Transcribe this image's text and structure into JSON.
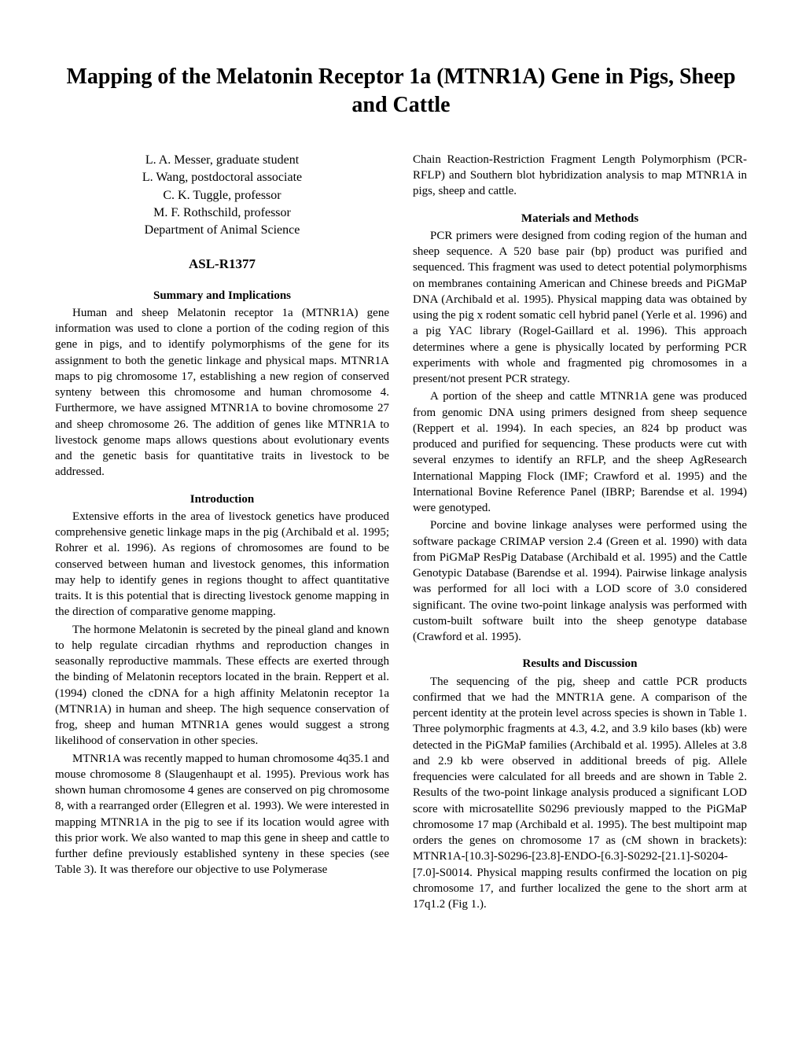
{
  "title": "Mapping of the Melatonin Receptor 1a (MTNR1A) Gene in Pigs, Sheep and Cattle",
  "authors": {
    "a1": "L. A. Messer, graduate student",
    "a2": "L. Wang, postdoctoral associate",
    "a3": "C. K. Tuggle, professor",
    "a4": "M. F. Rothschild, professor",
    "dept": "Department of Animal Science"
  },
  "asl": "ASL-R1377",
  "left": {
    "h1": "Summary and Implications",
    "p1": "Human and sheep Melatonin receptor 1a (MTNR1A) gene information was used to clone a portion of the coding region of this gene in pigs, and to identify polymorphisms of the gene for its assignment to both the genetic linkage and physical maps. MTNR1A maps to pig chromosome 17, establishing a new region of conserved synteny between this chromosome and human chromosome 4. Furthermore, we have assigned MTNR1A to bovine chromosome 27 and sheep chromosome 26. The addition of genes like MTNR1A to livestock genome maps allows questions about evolutionary events and the genetic basis for quantitative traits in livestock to be addressed.",
    "h2": "Introduction",
    "p2": "Extensive efforts in the area of livestock genetics have produced comprehensive genetic linkage maps in the pig (Archibald et al. 1995; Rohrer et al. 1996). As regions of chromosomes are found to be conserved between human and livestock genomes, this information may help to identify genes in regions thought to affect quantitative traits. It is this potential that is directing livestock genome mapping in the direction of comparative genome mapping.",
    "p3": "The hormone Melatonin is secreted by the pineal gland and known to help regulate circadian rhythms and reproduction changes in seasonally reproductive mammals. These effects are exerted through the binding of Melatonin receptors located in the brain. Reppert et al. (1994) cloned the cDNA for a high affinity Melatonin receptor 1a (MTNR1A) in human and sheep. The high sequence conservation of frog, sheep and human MTNR1A genes would suggest a strong likelihood of conservation in other species.",
    "p4": "MTNR1A was recently mapped to human chromosome 4q35.1 and mouse chromosome 8 (Slaugenhaupt et al. 1995). Previous work has shown human chromosome 4 genes are conserved on pig chromosome 8, with a rearranged order (Ellegren et al. 1993). We were interested in mapping MTNR1A in the pig to see if its location would agree with this prior work. We also wanted to map this gene in sheep and cattle to further define previously established synteny in these species (see Table 3). It was therefore our objective to use Polymerase"
  },
  "right": {
    "p0": "Chain Reaction-Restriction Fragment Length Polymorphism (PCR-RFLP) and Southern blot hybridization analysis to map MTNR1A in pigs, sheep and cattle.",
    "h1": "Materials and Methods",
    "p1": "PCR primers were designed from coding region of the human and sheep sequence. A 520 base pair (bp) product was purified and sequenced. This fragment was used to detect potential polymorphisms on membranes containing American and Chinese breeds and PiGMaP DNA (Archibald et al. 1995). Physical mapping data was obtained by using the pig x rodent somatic cell hybrid panel (Yerle et al. 1996) and a pig YAC library (Rogel-Gaillard et al. 1996). This approach determines where a gene is physically located by performing PCR experiments with whole and fragmented pig chromosomes in a present/not present PCR strategy.",
    "p2": "A portion of the sheep and cattle MTNR1A gene was produced from genomic DNA using primers designed from sheep sequence (Reppert et al. 1994). In each species, an 824 bp product was produced and purified for sequencing. These products were cut with several enzymes to identify an RFLP, and the sheep AgResearch International Mapping Flock (IMF; Crawford et al. 1995) and the International Bovine Reference Panel (IBRP; Barendse et al. 1994) were genotyped.",
    "p3": "Porcine and bovine linkage analyses were performed using the software package CRIMAP version 2.4 (Green et al. 1990) with data from PiGMaP ResPig Database (Archibald et al. 1995) and the Cattle Genotypic Database (Barendse et al. 1994). Pairwise linkage analysis was performed for all loci with a LOD score of 3.0 considered significant. The ovine two-point linkage analysis was performed with custom-built software built into the sheep genotype database (Crawford et al. 1995).",
    "h2": "Results and Discussion",
    "p4": "The sequencing of the pig, sheep and cattle PCR products confirmed that we had the MNTR1A gene. A comparison of the percent identity at the protein level across species is shown in Table 1. Three polymorphic fragments at 4.3, 4.2, and 3.9 kilo bases (kb) were detected in the PiGMaP families (Archibald et al. 1995). Alleles at 3.8 and 2.9 kb were observed in additional breeds of pig. Allele frequencies were calculated for all breeds and are shown in Table 2. Results of the two-point linkage analysis produced a significant LOD score with microsatellite S0296 previously mapped to the PiGMaP chromosome 17 map (Archibald et al. 1995). The best multipoint map orders the genes on chromosome 17 as (cM shown in brackets): MTNR1A-[10.3]-S0296-[23.8]-ENDO-[6.3]-S0292-[21.1]-S0204-[7.0]-S0014. Physical mapping results confirmed the location on pig chromosome 17, and further localized the gene to the short arm at 17q1.2 (Fig 1.)."
  }
}
